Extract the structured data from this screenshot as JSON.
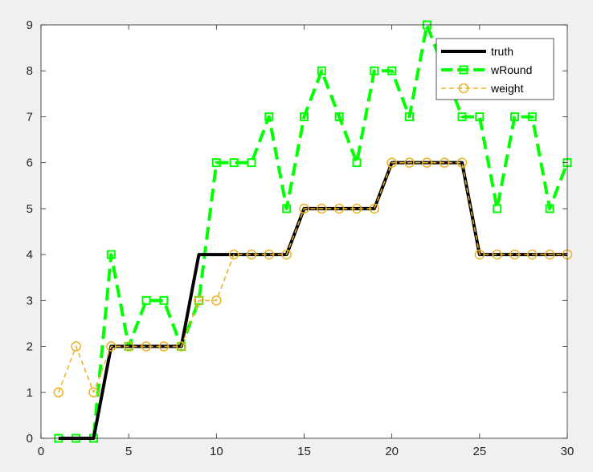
{
  "chart_data": {
    "type": "line",
    "title": "",
    "xlabel": "",
    "ylabel": "",
    "xlim": [
      0,
      30
    ],
    "ylim": [
      0,
      9
    ],
    "xticks": [
      0,
      5,
      10,
      15,
      20,
      25,
      30
    ],
    "yticks": [
      0,
      1,
      2,
      3,
      4,
      5,
      6,
      7,
      8,
      9
    ],
    "grid": false,
    "legend_position": "top-right",
    "series": [
      {
        "name": "truth",
        "color": "#000000",
        "style": "solid",
        "marker": "none",
        "x": [
          1,
          2,
          3,
          4,
          5,
          6,
          7,
          8,
          9,
          10,
          11,
          12,
          13,
          14,
          15,
          16,
          17,
          18,
          19,
          20,
          21,
          22,
          23,
          24,
          25,
          26,
          27,
          28,
          29,
          30
        ],
        "y": [
          0,
          0,
          0,
          2,
          2,
          2,
          2,
          2,
          4,
          4,
          4,
          4,
          4,
          4,
          5,
          5,
          5,
          5,
          5,
          6,
          6,
          6,
          6,
          6,
          4,
          4,
          4,
          4,
          4,
          4
        ]
      },
      {
        "name": "wRound",
        "color": "#00ff00",
        "style": "dashed",
        "marker": "square",
        "x": [
          1,
          2,
          3,
          4,
          5,
          6,
          7,
          8,
          9,
          10,
          11,
          12,
          13,
          14,
          15,
          16,
          17,
          18,
          19,
          20,
          21,
          22,
          23,
          24,
          25,
          26,
          27,
          28,
          29,
          30
        ],
        "y": [
          0,
          0,
          0,
          4,
          2,
          3,
          3,
          2,
          3,
          6,
          6,
          6,
          7,
          5,
          7,
          8,
          7,
          6,
          8,
          8,
          7,
          9,
          8,
          7,
          7,
          5,
          7,
          7,
          5,
          6
        ]
      },
      {
        "name": "weight",
        "color": "#edb120",
        "style": "dashed",
        "marker": "circle",
        "x": [
          1,
          2,
          3,
          4,
          5,
          6,
          7,
          8,
          9,
          10,
          11,
          12,
          13,
          14,
          15,
          16,
          17,
          18,
          19,
          20,
          21,
          22,
          23,
          24,
          25,
          26,
          27,
          28,
          29,
          30
        ],
        "y": [
          1,
          2,
          1,
          2,
          2,
          2,
          2,
          2,
          3,
          3,
          4,
          4,
          4,
          4,
          5,
          5,
          5,
          5,
          5,
          6,
          6,
          6,
          6,
          6,
          4,
          4,
          4,
          4,
          4,
          4
        ]
      }
    ]
  }
}
